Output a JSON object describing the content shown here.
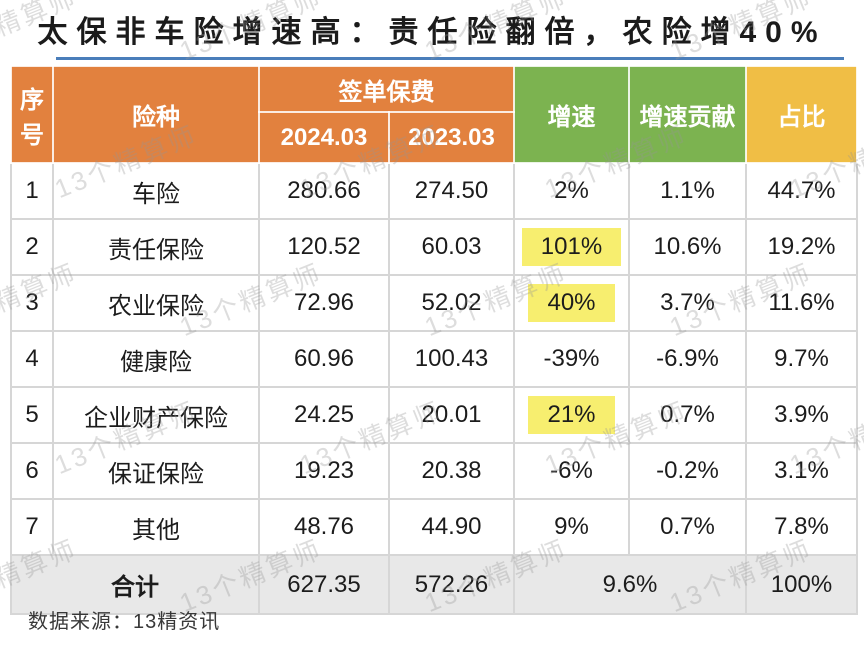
{
  "chart_data": {
    "type": "table",
    "title": "太保非车险增速高：责任险翻倍，农险增40%",
    "header": {
      "seq": "序号",
      "line_type": "险种",
      "premium_group": "签单保费",
      "premium_2024": "2024.03",
      "premium_2023": "2023.03",
      "growth": "增速",
      "growth_contribution": "增速贡献",
      "share": "占比"
    },
    "rows": [
      {
        "seq": "1",
        "type": "车险",
        "premium_2024": "280.66",
        "premium_2023": "274.50",
        "growth": "2%",
        "highlight": false,
        "contribution": "1.1%",
        "share": "44.7%"
      },
      {
        "seq": "2",
        "type": "责任保险",
        "premium_2024": "120.52",
        "premium_2023": "60.03",
        "growth": "101%",
        "highlight": true,
        "contribution": "10.6%",
        "share": "19.2%"
      },
      {
        "seq": "3",
        "type": "农业保险",
        "premium_2024": "72.96",
        "premium_2023": "52.02",
        "growth": "40%",
        "highlight": true,
        "contribution": "3.7%",
        "share": "11.6%"
      },
      {
        "seq": "4",
        "type": "健康险",
        "premium_2024": "60.96",
        "premium_2023": "100.43",
        "growth": "-39%",
        "highlight": false,
        "contribution": "-6.9%",
        "share": "9.7%"
      },
      {
        "seq": "5",
        "type": "企业财产保险",
        "premium_2024": "24.25",
        "premium_2023": "20.01",
        "growth": "21%",
        "highlight": true,
        "contribution": "0.7%",
        "share": "3.9%"
      },
      {
        "seq": "6",
        "type": "保证保险",
        "premium_2024": "19.23",
        "premium_2023": "20.38",
        "growth": "-6%",
        "highlight": false,
        "contribution": "-0.2%",
        "share": "3.1%"
      },
      {
        "seq": "7",
        "type": "其他",
        "premium_2024": "48.76",
        "premium_2023": "44.90",
        "growth": "9%",
        "highlight": false,
        "contribution": "0.7%",
        "share": "7.8%"
      }
    ],
    "total": {
      "label": "合计",
      "premium_2024": "627.35",
      "premium_2023": "572.26",
      "growth": "9.6%",
      "share": "100%"
    }
  },
  "footer": {
    "source": "数据来源：13精资讯"
  },
  "watermark": {
    "text": "13个精算师"
  },
  "colors": {
    "header_orange": "#e2813e",
    "header_green": "#7cb350",
    "header_gold": "#f0be45",
    "highlight_yellow": "#f7ee6f",
    "total_row_gray": "#e8e8e8",
    "title_underline_blue": "#4a7eba",
    "grid_line": "#d6d6d6",
    "title_text": "#1b1b1b"
  }
}
